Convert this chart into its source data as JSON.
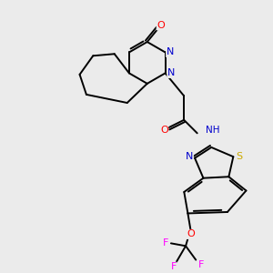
{
  "bg_color": "#ebebeb",
  "bond_color": "#000000",
  "colors": {
    "N": "#0000cc",
    "O": "#ff0000",
    "S": "#ccaa00",
    "F": "#ff00ff",
    "H": "#008080",
    "C": "#000000"
  }
}
